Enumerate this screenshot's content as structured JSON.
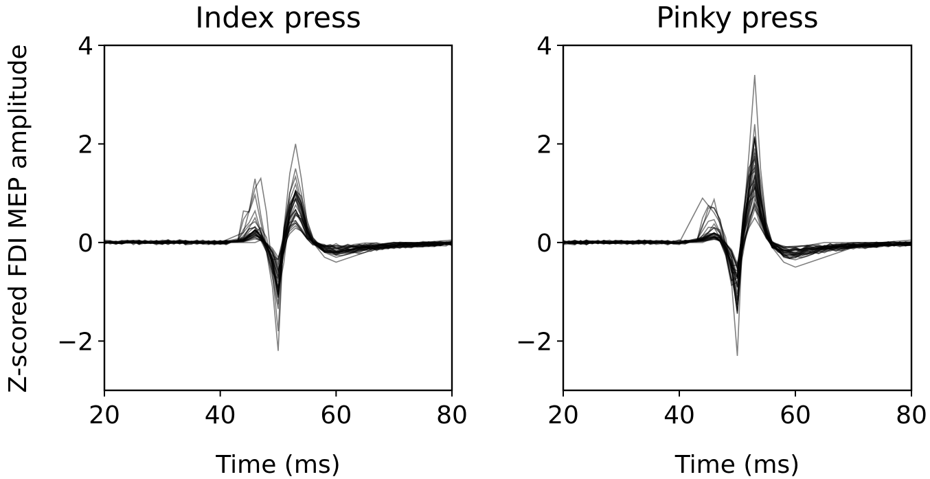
{
  "figure": {
    "ylabel": "Z-scored FDI MEP amplitude"
  },
  "chart_data": [
    {
      "type": "line",
      "title": "Index press",
      "xlabel": "Time (ms)",
      "ylabel": "Z-scored FDI MEP amplitude",
      "xlim": [
        20,
        80
      ],
      "ylim": [
        -3,
        4
      ],
      "xticks": [
        20,
        40,
        60,
        80
      ],
      "xtick_labels": [
        "20",
        "40",
        "60",
        "80"
      ],
      "yticks": [
        4,
        2,
        0,
        -2
      ],
      "ytick_labels": [
        "4",
        "2",
        "0",
        "−2"
      ],
      "grid": false,
      "line_color": "#000000",
      "line_opacity": 0.5,
      "series_count": 30,
      "peak_max": 2.0,
      "trough_min": -2.2,
      "pre_bump_max": 1.3,
      "series": [
        {
          "x": [
            20,
            30,
            40,
            44,
            46,
            47,
            48,
            49,
            50,
            51,
            52,
            53,
            54,
            55,
            56,
            58,
            60,
            65,
            70,
            80
          ],
          "values": [
            0.0,
            0.02,
            0.0,
            0.1,
            0.5,
            0.2,
            -0.2,
            -0.9,
            -2.2,
            0.3,
            1.4,
            2.0,
            1.3,
            0.4,
            0.1,
            -0.2,
            -0.3,
            -0.15,
            -0.05,
            0.05
          ]
        },
        {
          "x": [
            20,
            30,
            40,
            44,
            46,
            47,
            48,
            49,
            50,
            51,
            52,
            53,
            54,
            55,
            56,
            58,
            60,
            65,
            70,
            80
          ],
          "values": [
            0.0,
            -0.02,
            0.0,
            0.2,
            1.1,
            1.3,
            0.6,
            -0.6,
            -1.8,
            0.2,
            1.0,
            1.5,
            1.0,
            0.3,
            0.0,
            -0.3,
            -0.4,
            -0.2,
            -0.05,
            0.0
          ]
        },
        {
          "x": [
            20,
            30,
            40,
            44,
            46,
            47,
            48,
            49,
            50,
            51,
            52,
            53,
            54,
            55,
            56,
            58,
            60,
            65,
            70,
            80
          ],
          "values": [
            0.0,
            0.0,
            0.0,
            0.05,
            0.2,
            0.3,
            0.1,
            -0.5,
            -1.0,
            0.1,
            0.8,
            1.0,
            0.7,
            0.2,
            0.0,
            -0.2,
            -0.2,
            -0.1,
            0.0,
            0.0
          ]
        },
        {
          "x": [
            20,
            30,
            40,
            44,
            46,
            47,
            48,
            49,
            50,
            51,
            52,
            53,
            54,
            55,
            56,
            58,
            60,
            65,
            70,
            80
          ],
          "values": [
            0.0,
            0.02,
            0.0,
            0.0,
            0.0,
            0.05,
            -0.1,
            -0.3,
            -0.6,
            0.0,
            0.4,
            0.6,
            0.4,
            0.1,
            0.0,
            -0.1,
            -0.2,
            -0.1,
            0.0,
            0.0
          ]
        }
      ]
    },
    {
      "type": "line",
      "title": "Pinky press",
      "xlabel": "Time (ms)",
      "ylabel": "",
      "xlim": [
        20,
        80
      ],
      "ylim": [
        -3,
        4
      ],
      "xticks": [
        20,
        40,
        60,
        80
      ],
      "xtick_labels": [
        "20",
        "40",
        "60",
        "80"
      ],
      "yticks": [
        4,
        2,
        0,
        -2
      ],
      "ytick_labels": [
        "4",
        "2",
        "0",
        "−2"
      ],
      "grid": false,
      "line_color": "#000000",
      "line_opacity": 0.5,
      "series_count": 30,
      "peak_max": 3.4,
      "trough_min": -2.3,
      "pre_bump_max": 0.9,
      "series": [
        {
          "x": [
            20,
            30,
            40,
            44,
            46,
            47,
            48,
            49,
            50,
            51,
            52,
            53,
            54,
            55,
            56,
            58,
            60,
            65,
            70,
            80
          ],
          "values": [
            0.0,
            0.02,
            0.0,
            0.1,
            0.3,
            0.2,
            -0.2,
            -0.8,
            -2.3,
            0.4,
            1.8,
            3.4,
            1.5,
            0.4,
            0.0,
            -0.3,
            -0.35,
            -0.15,
            -0.05,
            0.05
          ]
        },
        {
          "x": [
            20,
            30,
            40,
            44,
            46,
            47,
            48,
            49,
            50,
            51,
            52,
            53,
            54,
            55,
            56,
            58,
            60,
            65,
            70,
            80
          ],
          "values": [
            0.0,
            0.0,
            0.0,
            0.9,
            0.6,
            0.4,
            0.1,
            -0.6,
            -1.4,
            0.2,
            1.2,
            2.4,
            1.0,
            0.2,
            -0.1,
            -0.4,
            -0.5,
            -0.3,
            -0.1,
            0.0
          ]
        },
        {
          "x": [
            20,
            30,
            40,
            44,
            46,
            47,
            48,
            49,
            50,
            51,
            52,
            53,
            54,
            55,
            56,
            58,
            60,
            65,
            70,
            80
          ],
          "values": [
            0.0,
            0.02,
            0.0,
            0.1,
            0.3,
            0.1,
            -0.1,
            -0.4,
            -0.9,
            0.1,
            0.6,
            1.0,
            0.6,
            0.2,
            0.0,
            -0.2,
            -0.2,
            -0.1,
            0.0,
            0.0
          ]
        },
        {
          "x": [
            20,
            30,
            40,
            44,
            46,
            47,
            48,
            49,
            50,
            51,
            52,
            53,
            54,
            55,
            56,
            58,
            60,
            65,
            70,
            80
          ],
          "values": [
            0.0,
            -0.02,
            0.0,
            0.0,
            0.1,
            0.1,
            0.0,
            -0.2,
            -0.5,
            0.0,
            0.3,
            0.5,
            0.3,
            0.1,
            0.0,
            -0.1,
            -0.1,
            0.0,
            0.0,
            0.0
          ]
        }
      ]
    }
  ]
}
